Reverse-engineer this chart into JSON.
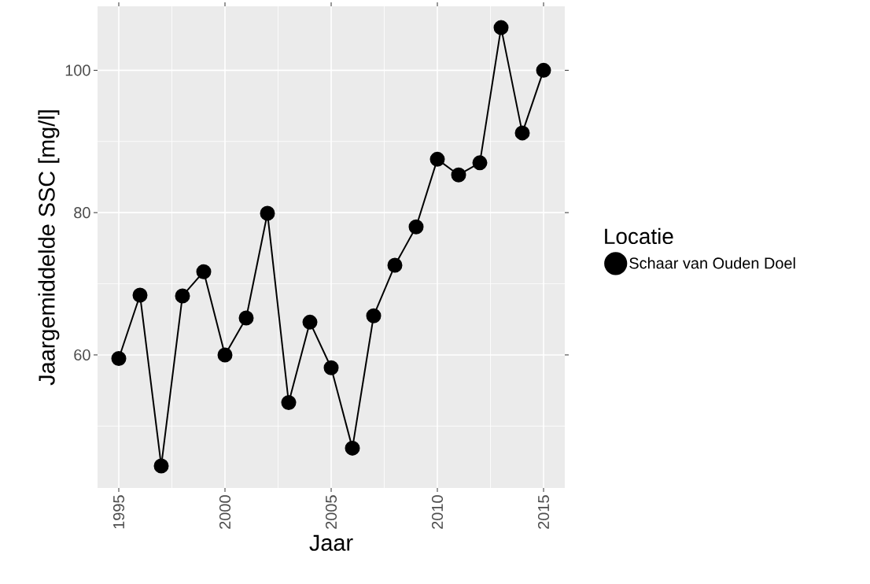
{
  "chart_data": {
    "type": "line",
    "xlabel": "Jaar",
    "ylabel": "Jaargemiddelde SSC [mg/l]",
    "legend_title": "Locatie",
    "x": [
      1995,
      1996,
      1997,
      1998,
      1999,
      2000,
      2001,
      2002,
      2003,
      2004,
      2005,
      2006,
      2007,
      2008,
      2009,
      2010,
      2011,
      2012,
      2013,
      2014,
      2015
    ],
    "series": [
      {
        "name": "Schaar van Ouden Doel",
        "color": "#000000",
        "values": [
          59.5,
          68.4,
          44.4,
          68.3,
          71.7,
          60.0,
          65.2,
          79.9,
          53.3,
          64.6,
          58.2,
          46.9,
          65.5,
          72.6,
          78.0,
          87.5,
          85.3,
          87.0,
          106.0,
          91.2,
          100.0
        ]
      }
    ],
    "xlim": [
      1994,
      2016
    ],
    "ylim": [
      41.3,
      109
    ],
    "xticks": [
      1995,
      2000,
      2005,
      2010,
      2015
    ],
    "yticks": [
      60,
      80,
      100
    ],
    "grid": true,
    "legend": "right",
    "marker": "circle",
    "line_style": "solid"
  }
}
